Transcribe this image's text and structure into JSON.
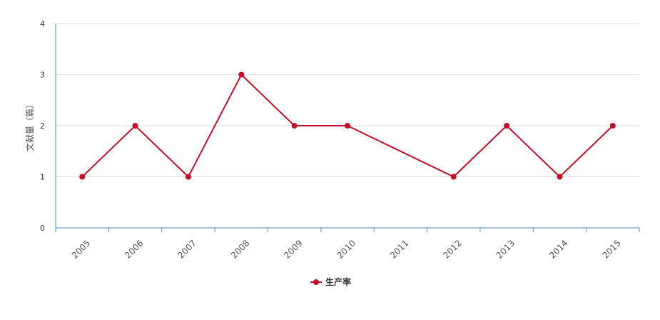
{
  "chart_data": {
    "type": "line",
    "categories": [
      "2005",
      "2006",
      "2007",
      "2008",
      "2009",
      "2010",
      "2011",
      "2012",
      "2013",
      "2014",
      "2015"
    ],
    "series": [
      {
        "name": "生产率",
        "x": [
          "2005",
          "2006",
          "2007",
          "2008",
          "2009",
          "2010",
          "2012",
          "2013",
          "2014",
          "2015"
        ],
        "values": [
          1,
          2,
          1,
          3,
          2,
          2,
          1,
          2,
          1,
          2
        ]
      }
    ],
    "ylabel": "文献量（篇）",
    "xlabel": "",
    "ylim": [
      0,
      4
    ],
    "yticks": [
      "0",
      "1",
      "2",
      "3",
      "4"
    ],
    "grid": true,
    "legend": "bottom",
    "colors": {
      "series": "#c0132b",
      "axis": "#4a90c8",
      "grid": "#dddddd"
    }
  }
}
